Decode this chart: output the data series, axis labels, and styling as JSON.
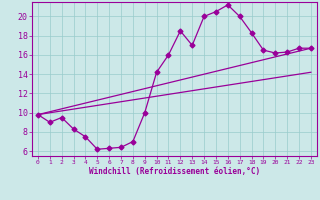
{
  "title": "",
  "xlabel": "Windchill (Refroidissement éolien,°C)",
  "ylabel": "",
  "bg_color": "#cce8e8",
  "line_color": "#990099",
  "marker_color": "#990099",
  "grid_color": "#99cccc",
  "xlim": [
    -0.5,
    23.5
  ],
  "ylim": [
    5.5,
    21.5
  ],
  "xticks": [
    0,
    1,
    2,
    3,
    4,
    5,
    6,
    7,
    8,
    9,
    10,
    11,
    12,
    13,
    14,
    15,
    16,
    17,
    18,
    19,
    20,
    21,
    22,
    23
  ],
  "yticks": [
    6,
    8,
    10,
    12,
    14,
    16,
    18,
    20
  ],
  "curve1_x": [
    0,
    1,
    2,
    3,
    4,
    5,
    6,
    7,
    8,
    9,
    10,
    11,
    12,
    13,
    14,
    15,
    16,
    17,
    18,
    19,
    20,
    21,
    22,
    23
  ],
  "curve1_y": [
    9.8,
    9.0,
    9.5,
    8.3,
    7.5,
    6.2,
    6.3,
    6.4,
    7.0,
    10.0,
    14.2,
    16.0,
    18.5,
    17.0,
    20.0,
    20.5,
    21.2,
    20.0,
    18.3,
    16.5,
    16.2,
    16.3,
    16.7,
    16.7
  ],
  "curve2_x": [
    0,
    23
  ],
  "curve2_y": [
    9.8,
    16.7
  ],
  "curve3_x": [
    0,
    23
  ],
  "curve3_y": [
    9.8,
    14.2
  ]
}
